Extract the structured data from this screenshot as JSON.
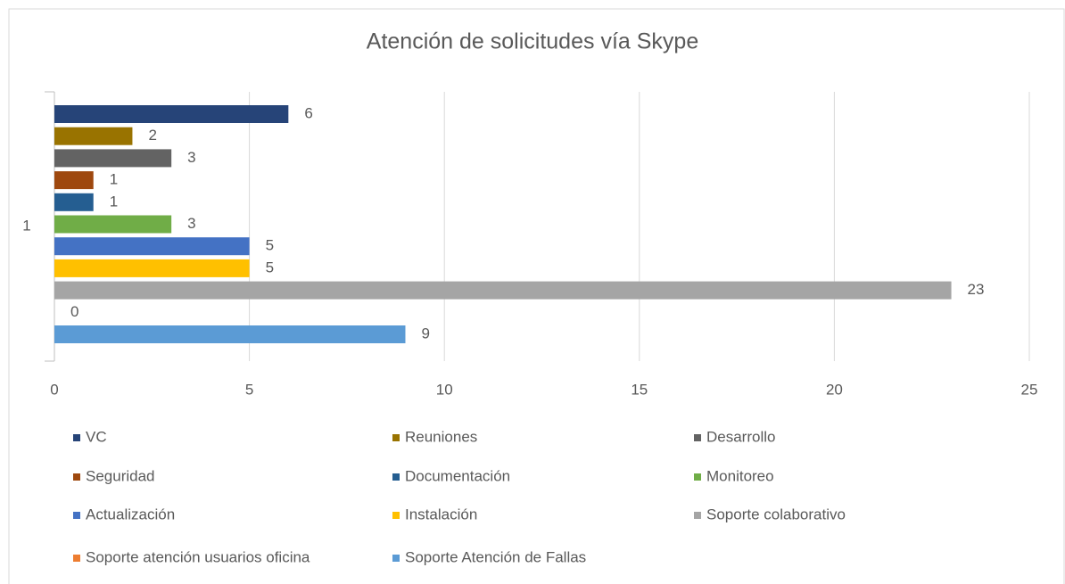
{
  "chart_data": {
    "type": "bar",
    "orientation": "horizontal",
    "title": "Atención de solicitudes vía Skype",
    "categories": [
      "1"
    ],
    "series": [
      {
        "name": "VC",
        "color": "#264478",
        "values": [
          6
        ]
      },
      {
        "name": "Reuniones",
        "color": "#997300",
        "values": [
          2
        ]
      },
      {
        "name": "Desarrollo",
        "color": "#636363",
        "values": [
          3
        ]
      },
      {
        "name": "Seguridad",
        "color": "#9e480e",
        "values": [
          1
        ]
      },
      {
        "name": "Documentación",
        "color": "#255e91",
        "values": [
          1
        ]
      },
      {
        "name": "Monitoreo",
        "color": "#70ad47",
        "values": [
          3
        ]
      },
      {
        "name": "Actualización",
        "color": "#4472c4",
        "values": [
          5
        ]
      },
      {
        "name": "Instalación",
        "color": "#ffc000",
        "values": [
          5
        ]
      },
      {
        "name": "Soporte colaborativo",
        "color": "#a5a5a5",
        "values": [
          23
        ]
      },
      {
        "name": "Soporte atención usuarios oficina",
        "color": "#ed7d31",
        "values": [
          0
        ]
      },
      {
        "name": "Soporte Atención de Fallas",
        "color": "#5b9bd5",
        "values": [
          9
        ]
      }
    ],
    "xlim": [
      0,
      25
    ],
    "xticks": [
      0,
      5,
      10,
      15,
      20,
      25
    ],
    "grid": true,
    "legend": "bottom"
  }
}
